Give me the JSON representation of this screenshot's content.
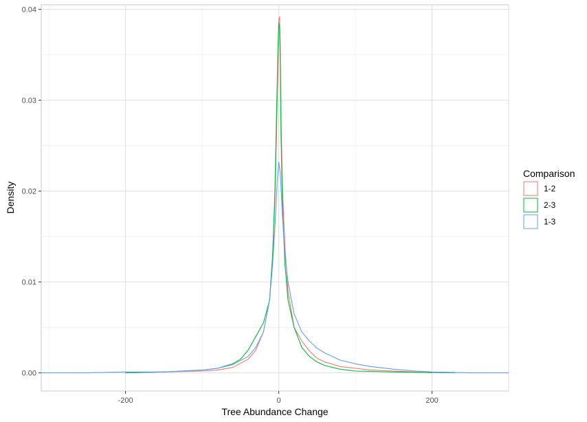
{
  "chart_data": {
    "type": "line",
    "title": "",
    "xlabel": "Tree Abundance Change",
    "ylabel": "Density",
    "xlim": [
      -310,
      300
    ],
    "ylim": [
      -0.002,
      0.0405
    ],
    "x_ticks": [
      -200,
      0,
      200
    ],
    "x_tick_labels": [
      "-200",
      "0",
      "200"
    ],
    "y_ticks": [
      0.0,
      0.01,
      0.02,
      0.03,
      0.04
    ],
    "y_tick_labels": [
      "0.00",
      "0.01",
      "0.02",
      "0.03",
      "0.04"
    ],
    "grid": true,
    "legend": {
      "title": "Comparison",
      "placement": "right"
    },
    "series": [
      {
        "name": "1-2",
        "color": "#F8766D",
        "points": [
          [
            -200,
            0
          ],
          [
            -150,
            0.0001
          ],
          [
            -100,
            0.0002
          ],
          [
            -80,
            0.0003
          ],
          [
            -60,
            0.0006
          ],
          [
            -40,
            0.0015
          ],
          [
            -30,
            0.0025
          ],
          [
            -20,
            0.0045
          ],
          [
            -12,
            0.008
          ],
          [
            -8,
            0.013
          ],
          [
            -5,
            0.019
          ],
          [
            -3,
            0.026
          ],
          [
            -1,
            0.034
          ],
          [
            0,
            0.0388
          ],
          [
            1,
            0.0392
          ],
          [
            2,
            0.036
          ],
          [
            3,
            0.028
          ],
          [
            5,
            0.02
          ],
          [
            8,
            0.014
          ],
          [
            12,
            0.009
          ],
          [
            20,
            0.005
          ],
          [
            30,
            0.0035
          ],
          [
            40,
            0.0024
          ],
          [
            50,
            0.0016
          ],
          [
            60,
            0.0012
          ],
          [
            80,
            0.0007
          ],
          [
            100,
            0.0005
          ],
          [
            120,
            0.0003
          ],
          [
            150,
            0.0002
          ],
          [
            180,
            0.0001
          ],
          [
            200,
            0
          ]
        ]
      },
      {
        "name": "2-3",
        "color": "#00BA38",
        "points": [
          [
            -200,
            0
          ],
          [
            -150,
            0.0001
          ],
          [
            -100,
            0.0003
          ],
          [
            -80,
            0.0005
          ],
          [
            -60,
            0.001
          ],
          [
            -50,
            0.0015
          ],
          [
            -40,
            0.0025
          ],
          [
            -30,
            0.004
          ],
          [
            -20,
            0.0055
          ],
          [
            -12,
            0.008
          ],
          [
            -8,
            0.013
          ],
          [
            -5,
            0.02
          ],
          [
            -3,
            0.028
          ],
          [
            -1,
            0.036
          ],
          [
            0,
            0.0385
          ],
          [
            1,
            0.038
          ],
          [
            2,
            0.034
          ],
          [
            3,
            0.026
          ],
          [
            5,
            0.018
          ],
          [
            8,
            0.012
          ],
          [
            12,
            0.008
          ],
          [
            20,
            0.005
          ],
          [
            30,
            0.0028
          ],
          [
            40,
            0.0018
          ],
          [
            50,
            0.0012
          ],
          [
            60,
            0.0008
          ],
          [
            80,
            0.0004
          ],
          [
            100,
            0.0002
          ],
          [
            150,
            0.0001
          ],
          [
            230,
            0
          ]
        ]
      },
      {
        "name": "1-3",
        "color": "#619CFF",
        "points": [
          [
            -310,
            0
          ],
          [
            -250,
            0
          ],
          [
            -200,
            0.0001
          ],
          [
            -150,
            0.0001
          ],
          [
            -100,
            0.0003
          ],
          [
            -80,
            0.0005
          ],
          [
            -60,
            0.0009
          ],
          [
            -40,
            0.0018
          ],
          [
            -30,
            0.0028
          ],
          [
            -20,
            0.0045
          ],
          [
            -12,
            0.008
          ],
          [
            -8,
            0.012
          ],
          [
            -5,
            0.016
          ],
          [
            -2,
            0.021
          ],
          [
            0,
            0.0232
          ],
          [
            2,
            0.022
          ],
          [
            5,
            0.017
          ],
          [
            8,
            0.013
          ],
          [
            12,
            0.01
          ],
          [
            20,
            0.0065
          ],
          [
            30,
            0.0045
          ],
          [
            40,
            0.0035
          ],
          [
            50,
            0.0027
          ],
          [
            60,
            0.0022
          ],
          [
            80,
            0.0014
          ],
          [
            100,
            0.001
          ],
          [
            120,
            0.0007
          ],
          [
            150,
            0.0004
          ],
          [
            180,
            0.0002
          ],
          [
            200,
            0.0001
          ],
          [
            250,
            0
          ],
          [
            300,
            0
          ]
        ]
      }
    ]
  }
}
